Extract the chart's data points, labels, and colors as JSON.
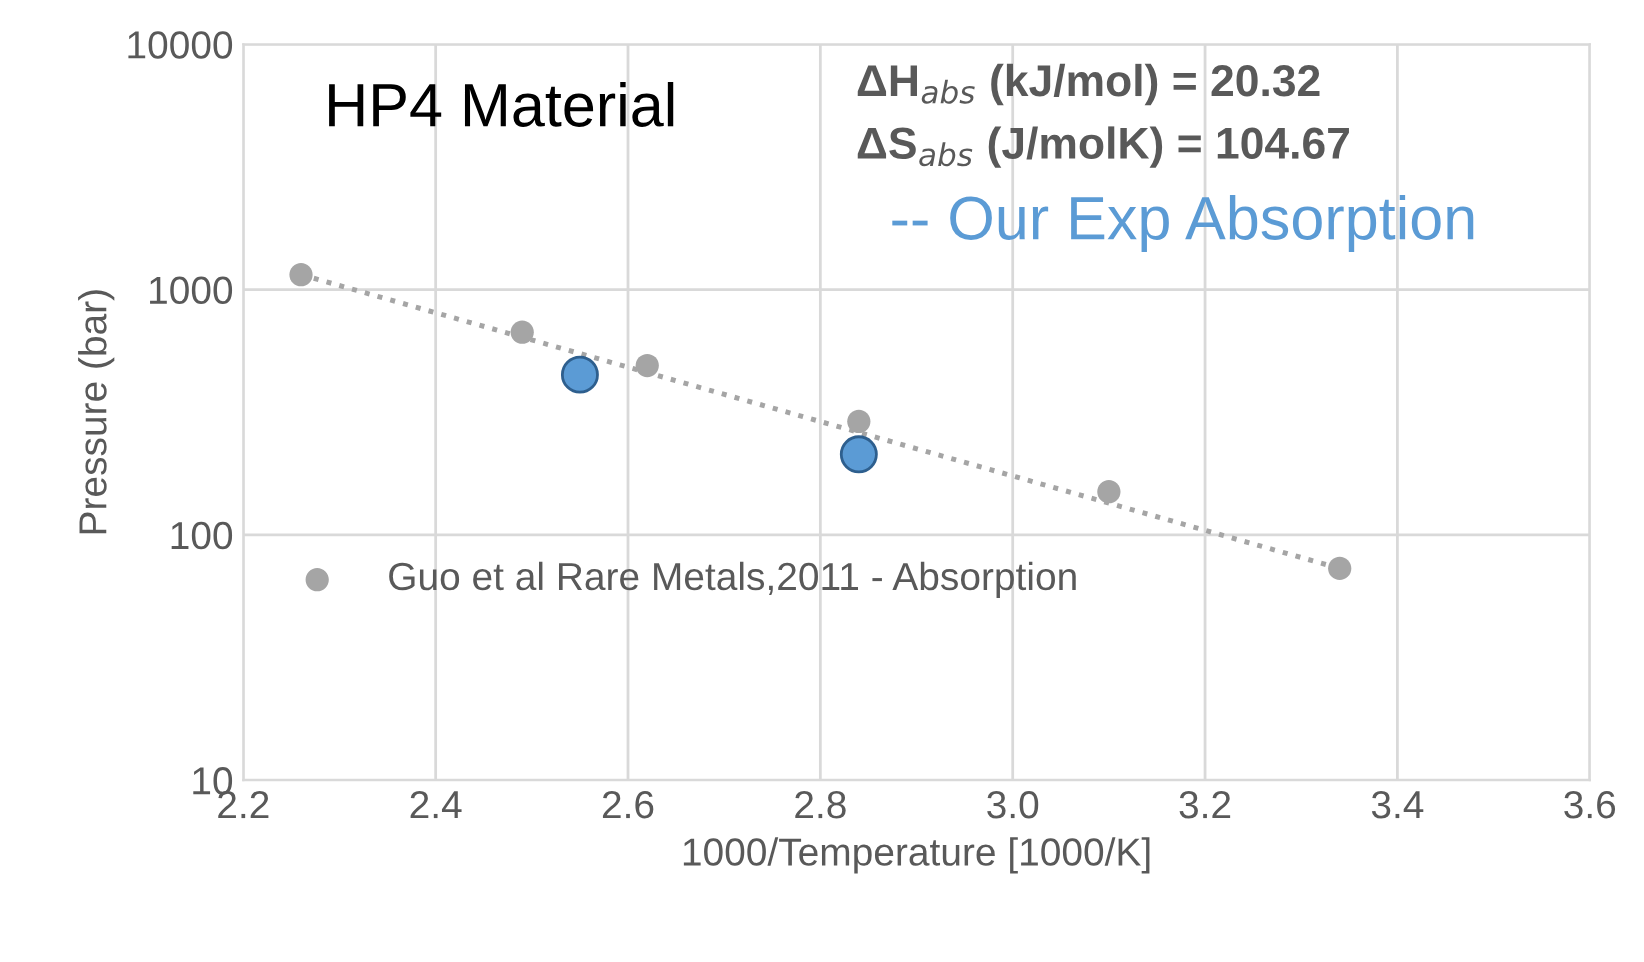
{
  "chart_data": {
    "type": "scatter",
    "xlabel": "1000/Temperature [1000/K]",
    "ylabel": "Pressure (bar)",
    "xlim": [
      2.2,
      3.6
    ],
    "xticks": [
      {
        "value": 2.2,
        "label": "2.2"
      },
      {
        "value": 2.4,
        "label": "2.4"
      },
      {
        "value": 2.6,
        "label": "2.6"
      },
      {
        "value": 2.8,
        "label": "2.8"
      },
      {
        "value": 3.0,
        "label": "3.0"
      },
      {
        "value": 3.2,
        "label": "3.2"
      },
      {
        "value": 3.4,
        "label": "3.4"
      },
      {
        "value": 3.6,
        "label": "3.6"
      }
    ],
    "ylim": [
      10,
      10000
    ],
    "yticks": [
      10,
      100,
      1000,
      10000
    ],
    "log": "y",
    "grid": true,
    "legend": "bottom left",
    "marker": "circle",
    "series": [
      {
        "name": "Guo et al Rare Metals,2011 - Absorption",
        "color": "#a5a5a5",
        "x": [
          2.26,
          2.49,
          2.62,
          2.84,
          3.1,
          3.34
        ],
        "values": [
          1150,
          670,
          490,
          290,
          150,
          73
        ]
      },
      {
        "name": "-- Our Exp Absorption",
        "color": "#5b9bd5",
        "x": [
          2.55,
          2.84
        ],
        "values": [
          450,
          213
        ]
      },
      {
        "type": "line",
        "color": "#a5a5a5",
        "line_style": "dotted",
        "marker": "none",
        "x": [
          2.26,
          3.34
        ],
        "values": [
          1150,
          73
        ]
      }
    ],
    "annotations": [
      "HP4 Material",
      "ΔH$_{abs}$ (kJ/mol) = 20.32",
      "ΔS$_{abs}$ (J/molK) = 104.67"
    ]
  }
}
